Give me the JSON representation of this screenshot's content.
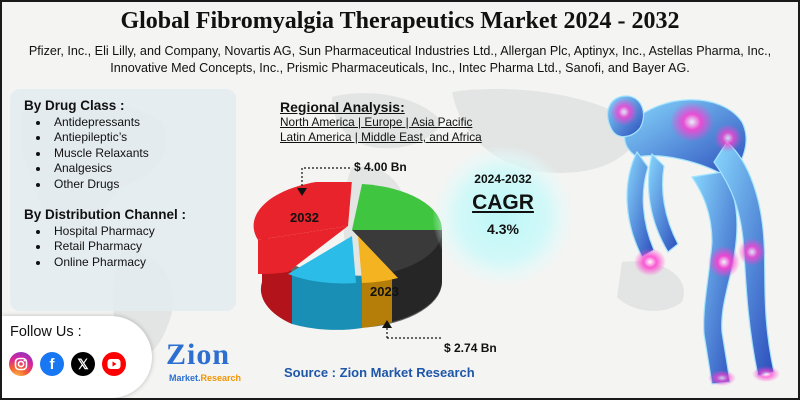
{
  "title": "Global Fibromyalgia Therapeutics Market 2024 - 2032",
  "companies": "Pfizer, Inc., Eli Lilly, and Company, Novartis AG, Sun Pharmaceutical Industries Ltd., Allergan Plc, Aptinyx, Inc., Astellas Pharma, Inc., Innovative Med Concepts, Inc., Prismic Pharmaceuticals, Inc., Intec Pharma Ltd., Sanofi, and Bayer AG.",
  "segments": {
    "drug_class": {
      "heading": "By Drug Class :",
      "items": [
        "Antidepressants",
        "Antiepileptic’s",
        "Muscle Relaxants",
        "Analgesics",
        "Other Drugs"
      ]
    },
    "distribution": {
      "heading": "By Distribution Channel :",
      "items": [
        "Hospital Pharmacy",
        "Retail Pharmacy",
        "Online Pharmacy"
      ]
    }
  },
  "regional": {
    "heading": "Regional Analysis:",
    "line1": "North America | Europe | Asia Pacific",
    "line2": "Latin America | Middle East, and Africa"
  },
  "market": {
    "value_2032": "$ 4.00 Bn",
    "value_2023": "$ 2.74 Bn",
    "label_2032": "2032",
    "label_2023": "2023"
  },
  "cagr": {
    "period": "2024-2032",
    "label": "CAGR",
    "rate": "4.3%"
  },
  "follow": {
    "label": "Follow Us :",
    "icons": [
      "instagram-icon",
      "facebook-icon",
      "x-icon",
      "youtube-icon"
    ]
  },
  "logo": {
    "word": "Zion",
    "sub_a": "Market.",
    "sub_b": "Research"
  },
  "source": "Source : Zion Market Research",
  "colors": {
    "red": "#e8232b",
    "green": "#3fc53f",
    "dark": "#3a3a3a",
    "yellow": "#f4b421",
    "cyan": "#2bbde8",
    "brand": "#2d6fd1"
  }
}
